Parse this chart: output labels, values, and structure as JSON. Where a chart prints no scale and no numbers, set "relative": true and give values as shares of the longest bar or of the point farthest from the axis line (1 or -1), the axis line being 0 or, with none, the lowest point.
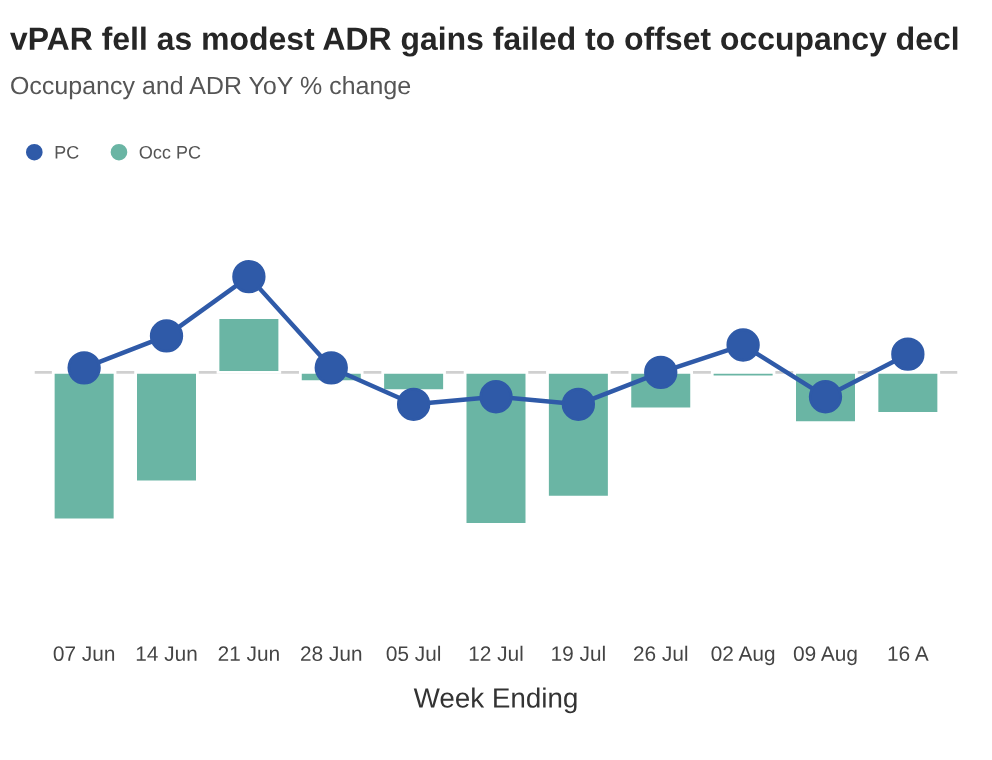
{
  "chart_data": {
    "type": "bar",
    "title": "vPAR fell as modest ADR gains failed to offset occupancy decl",
    "subtitle": "Occupancy and ADR YoY % change",
    "xlabel": "Week Ending",
    "categories": [
      "07 Jun",
      "14 Jun",
      "21 Jun",
      "28 Jun",
      "05 Jul",
      "12 Jul",
      "19 Jul",
      "26 Jul",
      "02 Aug",
      "09 Aug",
      "16 A"
    ],
    "relative": true,
    "legend": "top left",
    "grid": false,
    "series": [
      {
        "name": "PC",
        "type": "line",
        "color": "#2f5aa8",
        "marker": "circle",
        "values": [
          0.03,
          0.24,
          0.63,
          0.03,
          -0.21,
          -0.16,
          -0.21,
          0.0,
          0.18,
          -0.16,
          0.12
        ]
      },
      {
        "name": "Occ PC",
        "color": "#6ab5a4",
        "values": [
          -0.97,
          -0.72,
          0.36,
          -0.06,
          -0.12,
          -1,
          -0.82,
          -0.24,
          -0.03,
          -0.33,
          -0.27
        ]
      }
    ]
  }
}
